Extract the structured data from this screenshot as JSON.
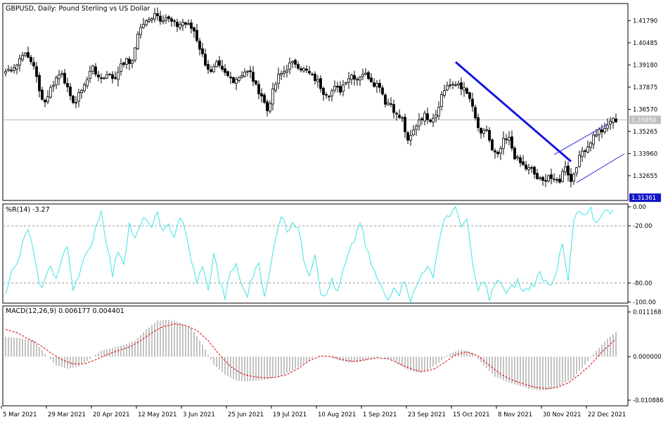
{
  "chart_data": [
    {
      "type": "candlestick",
      "title": "GBPUSD, Daily:  Pound Sterling vs US Dollar",
      "ylim": [
        1.312,
        1.428
      ],
      "y_ticks": [
        "1.41790",
        "1.40485",
        "1.39180",
        "1.37875",
        "1.36570",
        "1.35265",
        "1.33960",
        "1.32655"
      ],
      "current_price": "1.35950",
      "current_price_value": 1.3595,
      "low_marker": "1.31361",
      "low_marker_value": 1.31361,
      "x_labels": [
        "5 Mar 2021",
        "29 Mar 2021",
        "20 Apr 2021",
        "12 May 2021",
        "3 Jun 2021",
        "25 Jun 2021",
        "19 Jul 2021",
        "10 Aug 2021",
        "1 Sep 2021",
        "23 Sep 2021",
        "15 Oct 2021",
        "8 Nov 2021",
        "30 Nov 2021",
        "22 Dec 2021"
      ],
      "x_label_index": [
        0,
        16,
        32,
        48,
        64,
        80,
        96,
        112,
        128,
        144,
        160,
        176,
        192,
        208
      ],
      "close_path": [
        [
          0,
          1.388
        ],
        [
          4,
          1.392
        ],
        [
          6,
          1.399
        ],
        [
          8,
          1.396
        ],
        [
          10,
          1.392
        ],
        [
          12,
          1.376
        ],
        [
          14,
          1.37
        ],
        [
          16,
          1.378
        ],
        [
          18,
          1.384
        ],
        [
          20,
          1.388
        ],
        [
          23,
          1.372
        ],
        [
          25,
          1.37
        ],
        [
          27,
          1.378
        ],
        [
          29,
          1.383
        ],
        [
          31,
          1.392
        ],
        [
          33,
          1.383
        ],
        [
          35,
          1.385
        ],
        [
          37,
          1.387
        ],
        [
          39,
          1.383
        ],
        [
          41,
          1.393
        ],
        [
          43,
          1.394
        ],
        [
          45,
          1.393
        ],
        [
          47,
          1.411
        ],
        [
          49,
          1.416
        ],
        [
          51,
          1.418
        ],
        [
          53,
          1.423
        ],
        [
          55,
          1.419
        ],
        [
          57,
          1.42
        ],
        [
          59,
          1.417
        ],
        [
          61,
          1.415
        ],
        [
          63,
          1.417
        ],
        [
          65,
          1.415
        ],
        [
          67,
          1.412
        ],
        [
          69,
          1.402
        ],
        [
          71,
          1.393
        ],
        [
          73,
          1.387
        ],
        [
          75,
          1.392
        ],
        [
          77,
          1.388
        ],
        [
          79,
          1.385
        ],
        [
          81,
          1.383
        ],
        [
          83,
          1.385
        ],
        [
          85,
          1.388
        ],
        [
          87,
          1.387
        ],
        [
          89,
          1.379
        ],
        [
          91,
          1.374
        ],
        [
          93,
          1.365
        ],
        [
          95,
          1.376
        ],
        [
          97,
          1.385
        ],
        [
          99,
          1.388
        ],
        [
          101,
          1.392
        ],
        [
          103,
          1.393
        ],
        [
          105,
          1.39
        ],
        [
          107,
          1.388
        ],
        [
          109,
          1.385
        ],
        [
          111,
          1.382
        ],
        [
          113,
          1.376
        ],
        [
          115,
          1.375
        ],
        [
          117,
          1.378
        ],
        [
          119,
          1.377
        ],
        [
          121,
          1.383
        ],
        [
          123,
          1.386
        ],
        [
          125,
          1.384
        ],
        [
          127,
          1.387
        ],
        [
          129,
          1.385
        ],
        [
          131,
          1.381
        ],
        [
          133,
          1.38
        ],
        [
          135,
          1.37
        ],
        [
          137,
          1.369
        ],
        [
          139,
          1.362
        ],
        [
          141,
          1.36
        ],
        [
          143,
          1.346
        ],
        [
          145,
          1.353
        ],
        [
          147,
          1.36
        ],
        [
          149,
          1.362
        ],
        [
          151,
          1.36
        ],
        [
          153,
          1.363
        ],
        [
          155,
          1.374
        ],
        [
          157,
          1.38
        ],
        [
          159,
          1.379
        ],
        [
          161,
          1.381
        ],
        [
          163,
          1.377
        ],
        [
          165,
          1.372
        ],
        [
          167,
          1.36
        ],
        [
          169,
          1.35
        ],
        [
          171,
          1.354
        ],
        [
          173,
          1.341
        ],
        [
          175,
          1.338
        ],
        [
          177,
          1.347
        ],
        [
          179,
          1.348
        ],
        [
          181,
          1.338
        ],
        [
          183,
          1.334
        ],
        [
          185,
          1.331
        ],
        [
          187,
          1.33
        ],
        [
          189,
          1.325
        ],
        [
          191,
          1.323
        ],
        [
          193,
          1.327
        ],
        [
          195,
          1.323
        ],
        [
          197,
          1.324
        ],
        [
          199,
          1.333
        ],
        [
          201,
          1.323
        ],
        [
          203,
          1.333
        ],
        [
          205,
          1.341
        ],
        [
          207,
          1.344
        ],
        [
          209,
          1.35
        ],
        [
          211,
          1.353
        ],
        [
          213,
          1.353
        ],
        [
          215,
          1.359
        ],
        [
          217,
          1.3595
        ]
      ],
      "trend_lines": [
        {
          "from": [
            160,
            1.3935
          ],
          "to": [
            201,
            1.335
          ]
        },
        {
          "from": [
            195,
            1.339
          ],
          "to": [
            214,
            1.357
          ]
        },
        {
          "from": [
            203,
            1.3225
          ],
          "to": [
            220,
            1.3395
          ]
        }
      ]
    },
    {
      "type": "line",
      "label": "%R(14) -3.27",
      "ylim": [
        -100,
        0
      ],
      "levels": [
        "0.00",
        "-20.00",
        "-80.00",
        "-100.00"
      ],
      "level_values": [
        0,
        -20,
        -80,
        -100
      ],
      "dashed_levels": [
        -20,
        -80
      ],
      "values_path": [
        [
          0,
          -88
        ],
        [
          2,
          -70
        ],
        [
          4,
          -62
        ],
        [
          6,
          -40
        ],
        [
          8,
          -22
        ],
        [
          10,
          -50
        ],
        [
          12,
          -85
        ],
        [
          14,
          -78
        ],
        [
          16,
          -60
        ],
        [
          18,
          -76
        ],
        [
          20,
          -55
        ],
        [
          22,
          -42
        ],
        [
          24,
          -85
        ],
        [
          26,
          -70
        ],
        [
          28,
          -55
        ],
        [
          30,
          -46
        ],
        [
          32,
          -20
        ],
        [
          34,
          -5
        ],
        [
          36,
          -38
        ],
        [
          38,
          -72
        ],
        [
          40,
          -45
        ],
        [
          42,
          -58
        ],
        [
          44,
          -18
        ],
        [
          46,
          -35
        ],
        [
          48,
          -20
        ],
        [
          50,
          -10
        ],
        [
          52,
          -25
        ],
        [
          54,
          -5
        ],
        [
          56,
          -28
        ],
        [
          58,
          -20
        ],
        [
          60,
          -30
        ],
        [
          62,
          -10
        ],
        [
          64,
          -28
        ],
        [
          66,
          -55
        ],
        [
          68,
          -82
        ],
        [
          70,
          -60
        ],
        [
          72,
          -90
        ],
        [
          74,
          -48
        ],
        [
          76,
          -78
        ],
        [
          78,
          -95
        ],
        [
          80,
          -70
        ],
        [
          82,
          -60
        ],
        [
          84,
          -85
        ],
        [
          86,
          -92
        ],
        [
          88,
          -72
        ],
        [
          90,
          -55
        ],
        [
          92,
          -97
        ],
        [
          94,
          -68
        ],
        [
          96,
          -30
        ],
        [
          98,
          -8
        ],
        [
          100,
          -25
        ],
        [
          102,
          -15
        ],
        [
          104,
          -22
        ],
        [
          106,
          -55
        ],
        [
          108,
          -70
        ],
        [
          110,
          -48
        ],
        [
          112,
          -88
        ],
        [
          114,
          -95
        ],
        [
          116,
          -75
        ],
        [
          118,
          -92
        ],
        [
          120,
          -68
        ],
        [
          122,
          -50
        ],
        [
          124,
          -35
        ],
        [
          126,
          -15
        ],
        [
          128,
          -42
        ],
        [
          130,
          -60
        ],
        [
          132,
          -75
        ],
        [
          134,
          -88
        ],
        [
          136,
          -98
        ],
        [
          138,
          -82
        ],
        [
          140,
          -90
        ],
        [
          142,
          -76
        ],
        [
          144,
          -98
        ],
        [
          146,
          -85
        ],
        [
          148,
          -70
        ],
        [
          150,
          -60
        ],
        [
          152,
          -78
        ],
        [
          154,
          -35
        ],
        [
          156,
          -12
        ],
        [
          158,
          -8
        ],
        [
          160,
          -2
        ],
        [
          162,
          -18
        ],
        [
          164,
          -15
        ],
        [
          166,
          -60
        ],
        [
          168,
          -90
        ],
        [
          170,
          -75
        ],
        [
          172,
          -98
        ],
        [
          174,
          -82
        ],
        [
          176,
          -78
        ],
        [
          178,
          -92
        ],
        [
          180,
          -85
        ],
        [
          182,
          -78
        ],
        [
          184,
          -90
        ],
        [
          186,
          -85
        ],
        [
          188,
          -80
        ],
        [
          190,
          -70
        ],
        [
          192,
          -78
        ],
        [
          194,
          -80
        ],
        [
          196,
          -65
        ],
        [
          198,
          -40
        ],
        [
          200,
          -80
        ],
        [
          202,
          -15
        ],
        [
          204,
          -5
        ],
        [
          206,
          -12
        ],
        [
          208,
          -4
        ],
        [
          210,
          -18
        ],
        [
          212,
          -5
        ],
        [
          214,
          -6
        ],
        [
          216,
          -3.27
        ]
      ],
      "color": "#3fe3e3"
    },
    {
      "type": "bar",
      "label": "MACD(12,26,9) 0.006177 0.004401",
      "ylim": [
        -0.0123,
        0.01268
      ],
      "y_ticks": [
        "0.011168",
        "0.000000",
        "-0.010886"
      ],
      "tick_values": [
        0.011168,
        0.0,
        -0.010886
      ],
      "histogram_path": [
        [
          0,
          0.005
        ],
        [
          6,
          0.0046
        ],
        [
          10,
          0.004
        ],
        [
          14,
          0.0008
        ],
        [
          18,
          -0.0022
        ],
        [
          22,
          -0.003
        ],
        [
          26,
          -0.0024
        ],
        [
          30,
          -0.0006
        ],
        [
          34,
          0.0015
        ],
        [
          38,
          0.0022
        ],
        [
          42,
          0.003
        ],
        [
          46,
          0.004
        ],
        [
          50,
          0.0068
        ],
        [
          54,
          0.009
        ],
        [
          58,
          0.0092
        ],
        [
          62,
          0.0085
        ],
        [
          66,
          0.0072
        ],
        [
          70,
          0.003
        ],
        [
          74,
          -0.002
        ],
        [
          78,
          -0.0045
        ],
        [
          82,
          -0.006
        ],
        [
          86,
          -0.0062
        ],
        [
          90,
          -0.006
        ],
        [
          94,
          -0.0055
        ],
        [
          98,
          -0.0048
        ],
        [
          102,
          -0.0035
        ],
        [
          106,
          -0.0018
        ],
        [
          110,
          0.0
        ],
        [
          114,
          0.0002
        ],
        [
          118,
          -0.0008
        ],
        [
          122,
          -0.0015
        ],
        [
          126,
          -0.0012
        ],
        [
          130,
          -0.0005
        ],
        [
          134,
          0.0
        ],
        [
          138,
          -0.001
        ],
        [
          142,
          -0.003
        ],
        [
          146,
          -0.004
        ],
        [
          150,
          -0.0035
        ],
        [
          154,
          -0.0015
        ],
        [
          158,
          0.0008
        ],
        [
          162,
          0.0018
        ],
        [
          166,
          0.001
        ],
        [
          170,
          -0.0022
        ],
        [
          174,
          -0.005
        ],
        [
          178,
          -0.0062
        ],
        [
          182,
          -0.0072
        ],
        [
          186,
          -0.008
        ],
        [
          190,
          -0.0085
        ],
        [
          194,
          -0.0082
        ],
        [
          198,
          -0.007
        ],
        [
          202,
          -0.0052
        ],
        [
          206,
          -0.002
        ],
        [
          210,
          0.0015
        ],
        [
          214,
          0.0045
        ],
        [
          217,
          0.0062
        ]
      ],
      "signal_path": [
        [
          0,
          0.0068
        ],
        [
          4,
          0.006
        ],
        [
          8,
          0.0045
        ],
        [
          12,
          0.003
        ],
        [
          16,
          0.001
        ],
        [
          20,
          -0.0008
        ],
        [
          24,
          -0.0018
        ],
        [
          28,
          -0.0018
        ],
        [
          32,
          -0.0008
        ],
        [
          36,
          0.0005
        ],
        [
          40,
          0.0015
        ],
        [
          44,
          0.0024
        ],
        [
          48,
          0.004
        ],
        [
          52,
          0.006
        ],
        [
          56,
          0.0075
        ],
        [
          60,
          0.0082
        ],
        [
          64,
          0.0078
        ],
        [
          68,
          0.0066
        ],
        [
          72,
          0.004
        ],
        [
          76,
          0.0005
        ],
        [
          80,
          -0.0025
        ],
        [
          84,
          -0.0043
        ],
        [
          88,
          -0.005
        ],
        [
          92,
          -0.0053
        ],
        [
          96,
          -0.0052
        ],
        [
          100,
          -0.0045
        ],
        [
          104,
          -0.003
        ],
        [
          108,
          -0.001
        ],
        [
          112,
          0.0002
        ],
        [
          116,
          0.0
        ],
        [
          120,
          -0.0008
        ],
        [
          124,
          -0.0012
        ],
        [
          128,
          -0.0008
        ],
        [
          132,
          -0.0003
        ],
        [
          136,
          -0.0005
        ],
        [
          140,
          -0.0018
        ],
        [
          144,
          -0.003
        ],
        [
          148,
          -0.0038
        ],
        [
          152,
          -0.0032
        ],
        [
          156,
          -0.0015
        ],
        [
          160,
          0.0005
        ],
        [
          164,
          0.0012
        ],
        [
          168,
          0.0002
        ],
        [
          172,
          -0.0022
        ],
        [
          176,
          -0.0044
        ],
        [
          180,
          -0.0058
        ],
        [
          184,
          -0.0068
        ],
        [
          188,
          -0.0076
        ],
        [
          192,
          -0.008
        ],
        [
          196,
          -0.0077
        ],
        [
          200,
          -0.0066
        ],
        [
          204,
          -0.0045
        ],
        [
          208,
          -0.002
        ],
        [
          212,
          0.0012
        ],
        [
          217,
          0.0044
        ]
      ]
    }
  ]
}
